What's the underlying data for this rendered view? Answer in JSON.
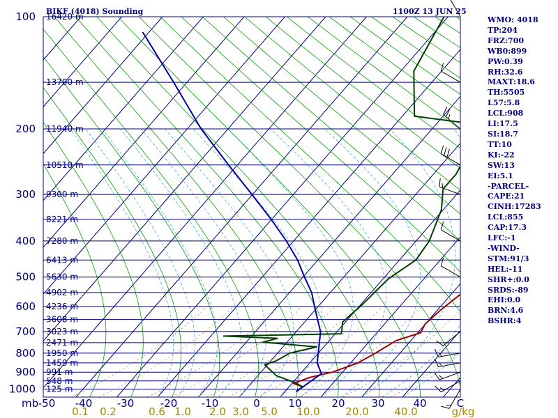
{
  "title_left": "BIKF (4018) Sounding",
  "title_right": "1100Z 13 JUN 25",
  "chart_data": {
    "type": "line",
    "title": "BIKF (4018) Sounding",
    "subtitle": "1100Z 13 JUN 25",
    "p_unit_label": "mb",
    "w_unit_label": "g/kg",
    "x_axis_temperature_c": {
      "min": -50,
      "max": 50,
      "ticks": [
        -50,
        -40,
        -30,
        -20,
        -10,
        0,
        10,
        20,
        30,
        40
      ]
    },
    "x_tick_labels": [
      "-50",
      "-40",
      "-30",
      "-20",
      "-10",
      "0",
      "10",
      "20",
      "30",
      "40"
    ],
    "last_tick_label": "C",
    "y_axis_pressure_mb": {
      "min": 100,
      "max": 1050,
      "scale": "log"
    },
    "pressure_ticks": [
      100,
      200,
      300,
      400,
      500,
      600,
      700,
      800,
      900,
      1000
    ],
    "mixing_ratio_labels": [
      "0.1",
      "0.2",
      "0.6",
      "1.0",
      "2.0",
      "3.0",
      "5.0",
      "10.0",
      "20.0",
      "40.0"
    ],
    "heights": [
      {
        "p": 100,
        "label": "16420 m"
      },
      {
        "p": 150,
        "label": "13700 m"
      },
      {
        "p": 200,
        "label": "11940 m"
      },
      {
        "p": 250,
        "label": "10510 m"
      },
      {
        "p": 300,
        "label": "9300 m"
      },
      {
        "p": 350,
        "label": "8221 m"
      },
      {
        "p": 400,
        "label": "7280 m"
      },
      {
        "p": 450,
        "label": "6413 m"
      },
      {
        "p": 500,
        "label": "5630 m"
      },
      {
        "p": 550,
        "label": "4902 m"
      },
      {
        "p": 600,
        "label": "4236 m"
      },
      {
        "p": 650,
        "label": "3608 m"
      },
      {
        "p": 700,
        "label": "3023 m"
      },
      {
        "p": 750,
        "label": "2471 m"
      },
      {
        "p": 800,
        "label": "1950 m"
      },
      {
        "p": 850,
        "label": "1459 m"
      },
      {
        "p": 900,
        "label": "991 m"
      },
      {
        "p": 950,
        "label": "548 m"
      },
      {
        "p": 1000,
        "label": "125 m"
      }
    ],
    "series": [
      {
        "name": "temperature",
        "color": "#a00000",
        "points": [
          [
            1015,
            11
          ],
          [
            985,
            10
          ],
          [
            965,
            6
          ],
          [
            930,
            7
          ],
          [
            900,
            10
          ],
          [
            850,
            12
          ],
          [
            800,
            12
          ],
          [
            740,
            12
          ],
          [
            705,
            15
          ],
          [
            670,
            13
          ],
          [
            615,
            12
          ],
          [
            555,
            12
          ],
          [
            500,
            11
          ],
          [
            420,
            10
          ],
          [
            355,
            7
          ],
          [
            295,
            1
          ],
          [
            262,
            -2
          ],
          [
            225,
            -1
          ],
          [
            200,
            0
          ],
          [
            182,
            9
          ],
          [
            155,
            13
          ],
          [
            100,
            30
          ]
        ]
      },
      {
        "name": "dewpoint",
        "color": "#004000",
        "points": [
          [
            1015,
            11
          ],
          [
            985,
            10
          ],
          [
            960,
            6
          ],
          [
            940,
            2
          ],
          [
            920,
            -2
          ],
          [
            860,
            -10
          ],
          [
            840,
            -9
          ],
          [
            800,
            -9
          ],
          [
            770,
            -5
          ],
          [
            748,
            -20
          ],
          [
            730,
            -18
          ],
          [
            720,
            -32
          ],
          [
            710,
            -4
          ],
          [
            660,
            -8
          ],
          [
            590,
            -9
          ],
          [
            505,
            -10
          ],
          [
            450,
            -8
          ],
          [
            400,
            -9
          ],
          [
            330,
            -12
          ],
          [
            290,
            -15
          ],
          [
            265,
            -14
          ],
          [
            250,
            -14
          ],
          [
            240,
            -15
          ],
          [
            215,
            -14
          ],
          [
            195,
            -14
          ],
          [
            185,
            -31
          ],
          [
            140,
            -35
          ],
          [
            100,
            -31
          ]
        ]
      },
      {
        "name": "parcel",
        "color": "#0000a0",
        "points": [
          [
            1015,
            11
          ],
          [
            908,
            8
          ],
          [
            850,
            2
          ],
          [
            800,
            -2
          ],
          [
            750,
            -6
          ],
          [
            700,
            -10
          ],
          [
            650,
            -15
          ],
          [
            600,
            -20
          ],
          [
            550,
            -25
          ],
          [
            500,
            -31
          ],
          [
            450,
            -37
          ],
          [
            400,
            -44
          ],
          [
            350,
            -52
          ],
          [
            300,
            -61
          ],
          [
            250,
            -71
          ],
          [
            200,
            -82
          ],
          [
            150,
            -93
          ],
          [
            110,
            -104
          ]
        ]
      }
    ],
    "wind_barbs": [
      {
        "p": 1000,
        "dir": 210,
        "spd": 15
      },
      {
        "p": 950,
        "dir": 240,
        "spd": 15
      },
      {
        "p": 900,
        "dir": 250,
        "spd": 15
      },
      {
        "p": 850,
        "dir": 260,
        "spd": 15
      },
      {
        "p": 800,
        "dir": 260,
        "spd": 15
      },
      {
        "p": 700,
        "dir": 230,
        "spd": 10
      },
      {
        "p": 500,
        "dir": 300,
        "spd": 10
      },
      {
        "p": 400,
        "dir": 300,
        "spd": 10
      },
      {
        "p": 300,
        "dir": 290,
        "spd": 15
      },
      {
        "p": 250,
        "dir": 300,
        "spd": 30
      },
      {
        "p": 200,
        "dir": 310,
        "spd": 25
      },
      {
        "p": 150,
        "dir": 300,
        "spd": 10
      },
      {
        "p": 100,
        "dir": 330,
        "spd": 10
      }
    ]
  },
  "indices": [
    "WMO: 4018",
    "TP:204",
    "FRZ:700",
    "WB0:899",
    "PW:0.39",
    "RH:32.6",
    "MAXT:18.6",
    "TH:5505",
    "L57:5.8",
    "LCL:908",
    "LI:17.5",
    "SI:18.7",
    "TT:10",
    "KI:-22",
    "SW:13",
    "EI:5.1",
    "-PARCEL-",
    "CAPE:21",
    "CINH:17283",
    "LCL:855",
    "CAP:17.3",
    "LFC:-1",
    "-WIND-",
    "STM:91/3",
    "HEL:-11",
    "SHR+:0.0",
    "SRDS:-89",
    "EHI:0.0",
    "BRN:4.6",
    "BSHR:4"
  ]
}
